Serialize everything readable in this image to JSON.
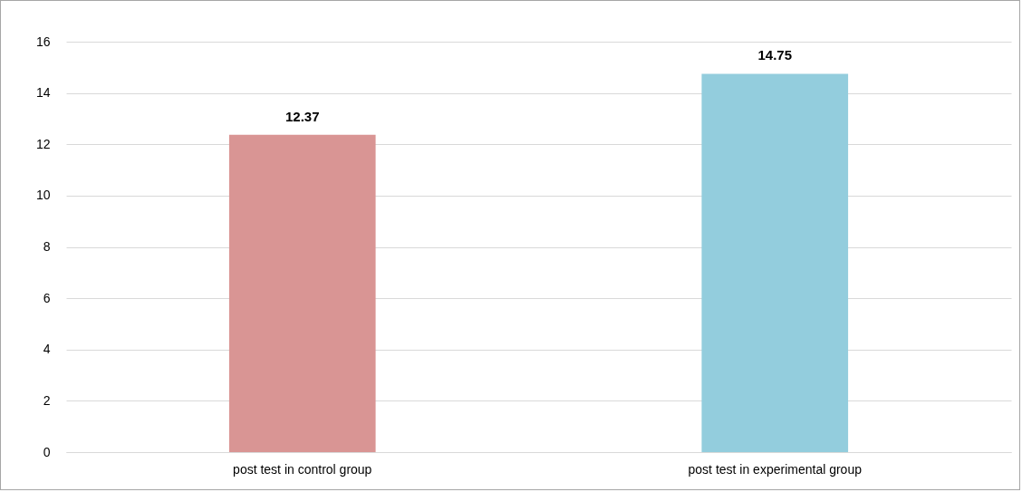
{
  "chart_data": {
    "type": "bar",
    "categories": [
      "post test in control group",
      "post test in experimental group"
    ],
    "values": [
      12.37,
      14.75
    ],
    "colors": [
      "#d99594",
      "#93cddd"
    ],
    "ylim": [
      0,
      16
    ],
    "yticks": [
      0,
      2,
      4,
      6,
      8,
      10,
      12,
      14,
      16
    ],
    "grid": "y",
    "data_labels": true
  }
}
